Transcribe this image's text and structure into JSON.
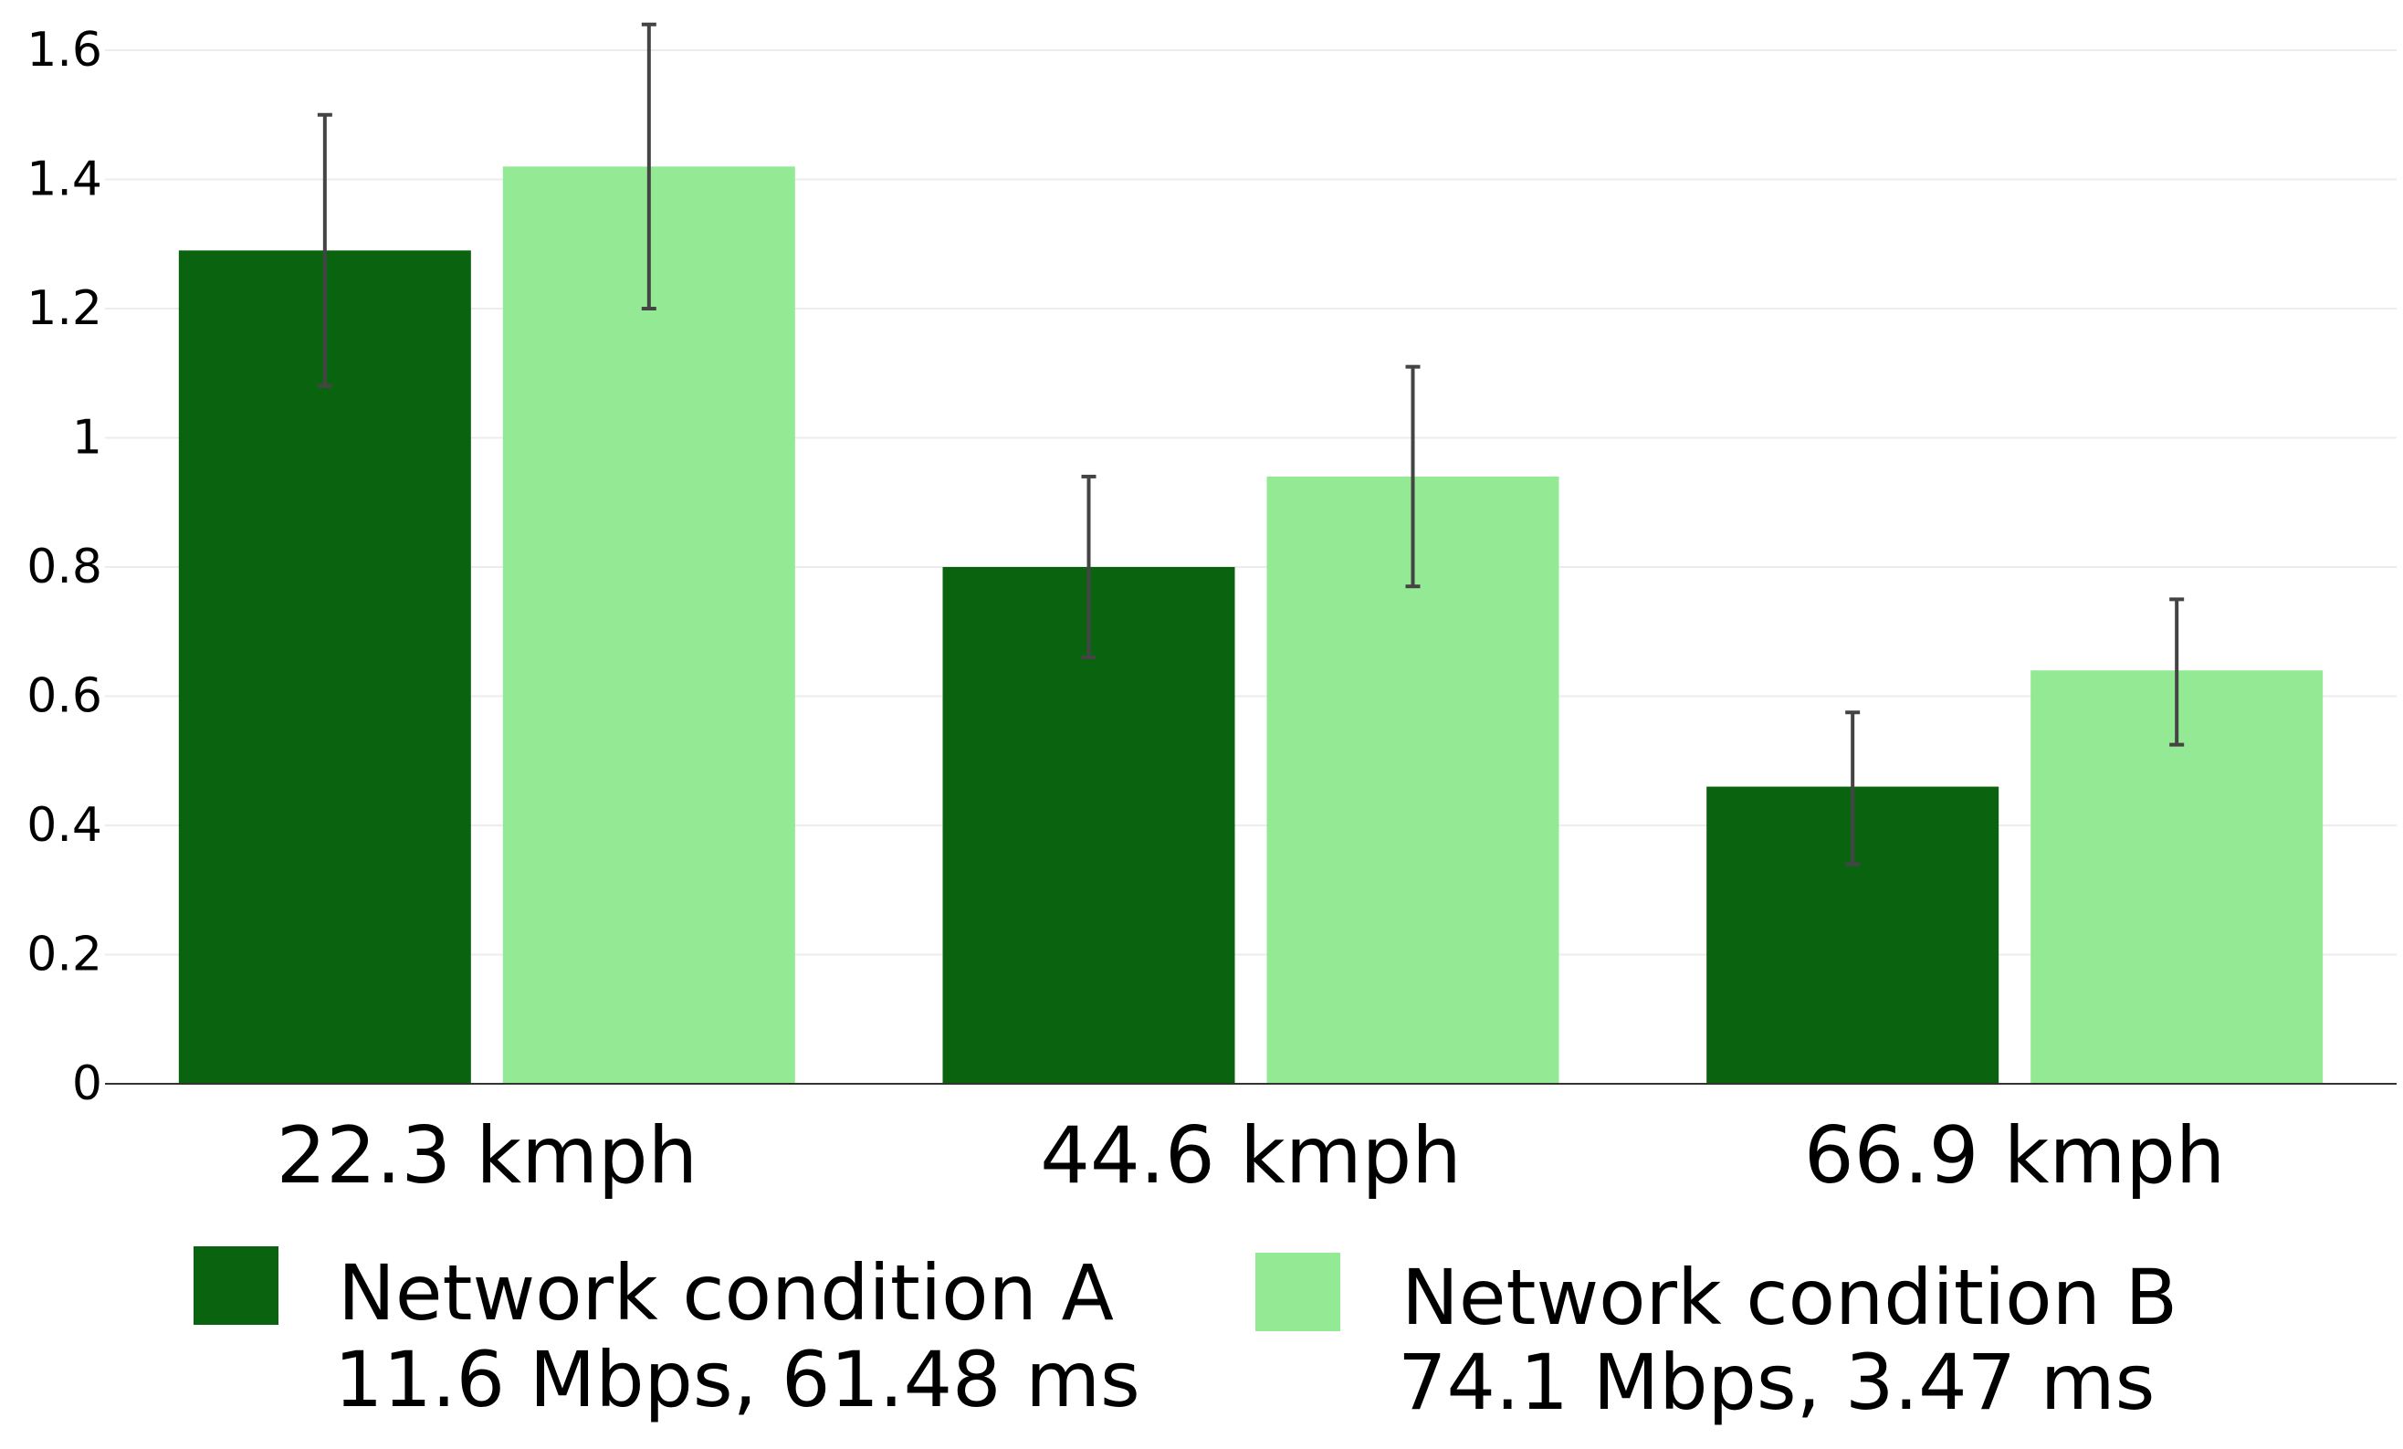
{
  "chart_data": {
    "type": "bar",
    "categories": [
      "22.3 kmph",
      "44.6 kmph",
      "66.9 kmph"
    ],
    "series": [
      {
        "name": "Network condition A",
        "detail": "11.6 Mbps, 61.48 ms",
        "color": "#0a640f",
        "values": [
          1.29,
          0.8,
          0.46
        ],
        "error": [
          [
            1.08,
            1.5
          ],
          [
            0.66,
            0.94
          ],
          [
            0.34,
            0.575
          ]
        ]
      },
      {
        "name": "Network condition B",
        "detail": "74.1 Mbps, 3.47 ms",
        "color": "#94ea94",
        "values": [
          1.42,
          0.94,
          0.64
        ],
        "error": [
          [
            1.2,
            1.64
          ],
          [
            0.77,
            1.11
          ],
          [
            0.525,
            0.75
          ]
        ]
      }
    ],
    "yticks": [
      "0",
      "0.2",
      "0.4",
      "0.6",
      "0.8",
      "1",
      "1.2",
      "1.4",
      "1.6"
    ],
    "ylim": [
      0,
      1.6
    ],
    "grid": true,
    "legend_position": "bottom",
    "title": "",
    "xlabel": "",
    "ylabel": ""
  }
}
